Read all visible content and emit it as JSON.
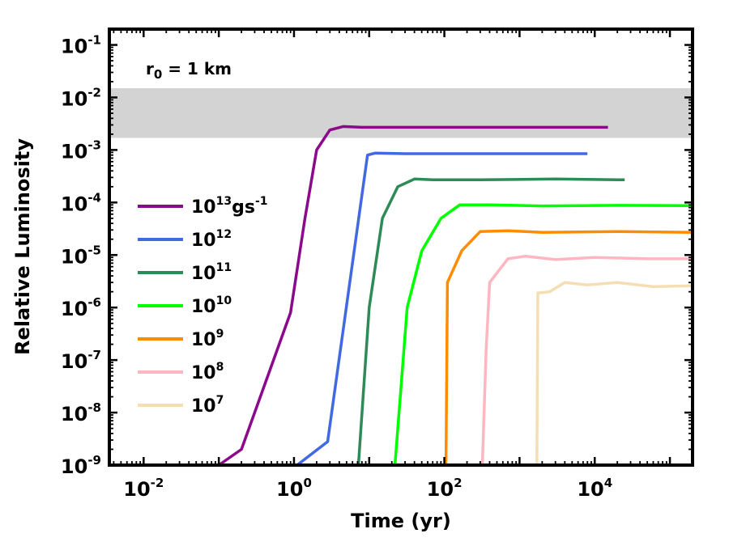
{
  "chart_data": {
    "type": "line",
    "xscale": "log",
    "yscale": "log",
    "xlabel": "Time (yr)",
    "ylabel": "Relative Luminosity",
    "xlim": [
      0.0035,
      200000
    ],
    "ylim": [
      1e-09,
      0.2
    ],
    "x_ticks": [
      {
        "base": "10",
        "exp": "-2",
        "value": 0.01
      },
      {
        "base": "10",
        "exp": "0",
        "value": 1
      },
      {
        "base": "10",
        "exp": "2",
        "value": 100
      },
      {
        "base": "10",
        "exp": "4",
        "value": 10000
      }
    ],
    "y_ticks": [
      {
        "base": "10",
        "exp": "-9",
        "value": 1e-09
      },
      {
        "base": "10",
        "exp": "-8",
        "value": 1e-08
      },
      {
        "base": "10",
        "exp": "-7",
        "value": 1e-07
      },
      {
        "base": "10",
        "exp": "-6",
        "value": 1e-06
      },
      {
        "base": "10",
        "exp": "-5",
        "value": 1e-05
      },
      {
        "base": "10",
        "exp": "-4",
        "value": 0.0001
      },
      {
        "base": "10",
        "exp": "-3",
        "value": 0.001
      },
      {
        "base": "10",
        "exp": "-2",
        "value": 0.01
      },
      {
        "base": "10",
        "exp": "-1",
        "value": 0.1
      }
    ],
    "annotation": {
      "r": "r",
      "sub": "0",
      "rest": " = 1 km"
    },
    "shaded_band": {
      "y_min": 0.0017,
      "y_max": 0.015,
      "color": "#d3d3d3"
    },
    "series": [
      {
        "label_base": "10",
        "label_exp": "13",
        "label_suffix": "gs",
        "label_suffix_exp": "-1",
        "color": "#8b0a8b",
        "points": [
          [
            0.1,
            1e-09
          ],
          [
            0.2,
            2e-09
          ],
          [
            0.9,
            8e-07
          ],
          [
            1.4,
            5e-05
          ],
          [
            2.0,
            0.001
          ],
          [
            3.0,
            0.0024
          ],
          [
            4.5,
            0.0028
          ],
          [
            8,
            0.0027
          ],
          [
            100,
            0.0027
          ],
          [
            1000,
            0.0027
          ],
          [
            15000,
            0.0027
          ]
        ]
      },
      {
        "label_base": "10",
        "label_exp": "12",
        "label_suffix": "",
        "label_suffix_exp": "",
        "color": "#4169e1",
        "points": [
          [
            1.1,
            1e-09
          ],
          [
            2.8,
            2.8e-09
          ],
          [
            9.5,
            0.0008
          ],
          [
            12,
            0.00087
          ],
          [
            30,
            0.00085
          ],
          [
            300,
            0.00085
          ],
          [
            3000,
            0.00085
          ],
          [
            8000,
            0.00085
          ]
        ]
      },
      {
        "label_base": "10",
        "label_exp": "11",
        "label_suffix": "",
        "label_suffix_exp": "",
        "color": "#2e8b57",
        "points": [
          [
            7.2,
            1e-09
          ],
          [
            10,
            1e-06
          ],
          [
            15,
            5e-05
          ],
          [
            24,
            0.0002
          ],
          [
            40,
            0.00028
          ],
          [
            70,
            0.00027
          ],
          [
            300,
            0.00027
          ],
          [
            3000,
            0.00028
          ],
          [
            25000,
            0.00027
          ]
        ]
      },
      {
        "label_base": "10",
        "label_exp": "10",
        "label_suffix": "",
        "label_suffix_exp": "",
        "color": "#00ff00",
        "points": [
          [
            22,
            1e-09
          ],
          [
            32,
            1e-06
          ],
          [
            50,
            1.2e-05
          ],
          [
            90,
            5e-05
          ],
          [
            160,
            9e-05
          ],
          [
            400,
            9e-05
          ],
          [
            2000,
            8.6e-05
          ],
          [
            20000,
            8.8e-05
          ],
          [
            200000,
            8.7e-05
          ]
        ]
      },
      {
        "label_base": "10",
        "label_exp": "9",
        "label_suffix": "",
        "label_suffix_exp": "",
        "color": "#ff8c00",
        "points": [
          [
            105,
            1e-09
          ],
          [
            110,
            3e-06
          ],
          [
            170,
            1.2e-05
          ],
          [
            300,
            2.8e-05
          ],
          [
            700,
            2.9e-05
          ],
          [
            2000,
            2.7e-05
          ],
          [
            20000,
            2.8e-05
          ],
          [
            200000,
            2.7e-05
          ]
        ]
      },
      {
        "label_base": "10",
        "label_exp": "8",
        "label_suffix": "",
        "label_suffix_exp": "",
        "color": "#ffb6c1",
        "points": [
          [
            320,
            1e-09
          ],
          [
            360,
            1.6e-07
          ],
          [
            400,
            3e-06
          ],
          [
            700,
            8.5e-06
          ],
          [
            1200,
            9.5e-06
          ],
          [
            3000,
            8.2e-06
          ],
          [
            10000,
            9e-06
          ],
          [
            50000,
            8.5e-06
          ],
          [
            200000,
            8.5e-06
          ]
        ]
      },
      {
        "label_base": "10",
        "label_exp": "7",
        "label_suffix": "",
        "label_suffix_exp": "",
        "color": "#f5deb3",
        "points": [
          [
            1700,
            1e-09
          ],
          [
            1750,
            1.9e-06
          ],
          [
            2500,
            2e-06
          ],
          [
            4000,
            3e-06
          ],
          [
            8000,
            2.7e-06
          ],
          [
            20000,
            3e-06
          ],
          [
            60000,
            2.5e-06
          ],
          [
            200000,
            2.6e-06
          ]
        ]
      }
    ]
  }
}
